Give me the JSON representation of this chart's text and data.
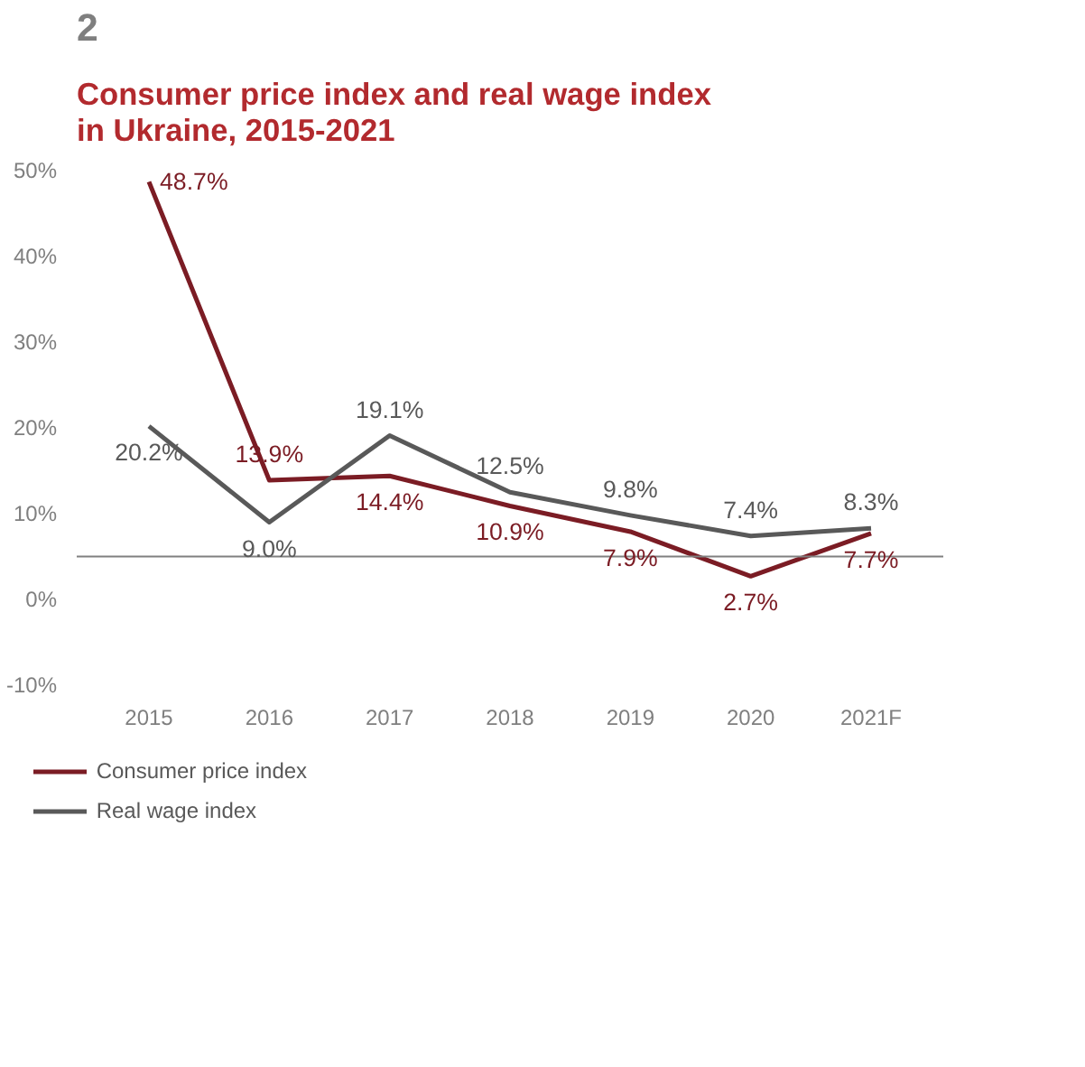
{
  "chart_data": {
    "type": "line",
    "title": "Consumer price index and real wage index in Ukraine, 2015-2021",
    "annotations": [
      "2"
    ],
    "categories": [
      "2015",
      "2016",
      "2017",
      "2018",
      "2019",
      "2020",
      "2021F"
    ],
    "series": [
      {
        "name": "Consumer price index",
        "color": "#7b1c24",
        "values": [
          48.7,
          13.9,
          14.4,
          10.9,
          7.9,
          2.7,
          7.7
        ],
        "value_labels": [
          "48.7%",
          "13.9%",
          "14.4%",
          "10.9%",
          "7.9%",
          "2.7%",
          "7.7%"
        ]
      },
      {
        "name": "Real wage index",
        "color": "#595959",
        "values": [
          20.2,
          9.0,
          19.1,
          12.5,
          9.8,
          7.4,
          8.3
        ],
        "value_labels": [
          "20.2%",
          "9.0%",
          "19.1%",
          "12.5%",
          "9.8%",
          "7.4%",
          "8.3%"
        ]
      }
    ],
    "ylim": [
      -10,
      50
    ],
    "yticks": [
      {
        "value": -10,
        "label": "-10%"
      },
      {
        "value": 0,
        "label": "0%"
      },
      {
        "value": 10,
        "label": "10%"
      },
      {
        "value": 20,
        "label": "20%"
      },
      {
        "value": 30,
        "label": "30%"
      },
      {
        "value": 40,
        "label": "40%"
      },
      {
        "value": 50,
        "label": "50%"
      }
    ],
    "ref_lines": [
      {
        "axis": "y",
        "value": 5,
        "color": "#808080"
      }
    ],
    "grid": false,
    "legend": "bottom",
    "marker": "none",
    "line_style": "solid"
  }
}
